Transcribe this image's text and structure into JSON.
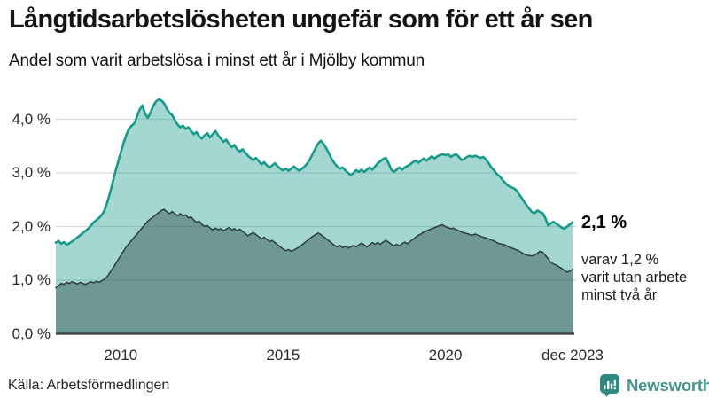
{
  "header": {
    "title": "Långtidsarbetslösheten ungefär som för ett år sen",
    "subtitle": "Andel som varit arbetslösa i minst ett år i Mjölby kommun"
  },
  "chart_data": {
    "type": "area",
    "title": "Långtidsarbetslösheten ungefär som för ett år sen",
    "subtitle": "Andel som varit arbetslösa i minst ett år i Mjölby kommun",
    "frequency": "monthly",
    "x_range": [
      "jan 2008",
      "dec 2023"
    ],
    "ylim": [
      0,
      4.6
    ],
    "grid": true,
    "y_tick_labels": [
      "0,0 %",
      "1,0 %",
      "2,0 %",
      "3,0 %",
      "4,0 %"
    ],
    "x_tick_labels": [
      "2010",
      "2015",
      "2020",
      "dec 2023"
    ],
    "x_tick_indices": [
      24,
      84,
      144,
      191
    ],
    "series": [
      {
        "name": "Andel arbetslösa minst ett år",
        "color": "#189a8a",
        "fill": "#189a8a",
        "fill_opacity": 0.4,
        "stroke_width": 2.6,
        "end_value": 2.1,
        "values": [
          1.7,
          1.73,
          1.68,
          1.71,
          1.66,
          1.69,
          1.72,
          1.76,
          1.8,
          1.84,
          1.88,
          1.92,
          1.96,
          2.02,
          2.08,
          2.12,
          2.16,
          2.22,
          2.3,
          2.45,
          2.62,
          2.82,
          3.02,
          3.2,
          3.38,
          3.55,
          3.7,
          3.82,
          3.88,
          3.92,
          4.05,
          4.18,
          4.26,
          4.1,
          4.03,
          4.12,
          4.25,
          4.33,
          4.37,
          4.35,
          4.3,
          4.2,
          4.12,
          4.08,
          3.98,
          3.9,
          3.85,
          3.88,
          3.82,
          3.85,
          3.78,
          3.72,
          3.76,
          3.68,
          3.64,
          3.7,
          3.74,
          3.66,
          3.72,
          3.78,
          3.7,
          3.64,
          3.58,
          3.62,
          3.54,
          3.48,
          3.52,
          3.44,
          3.4,
          3.44,
          3.38,
          3.32,
          3.28,
          3.24,
          3.28,
          3.22,
          3.16,
          3.2,
          3.14,
          3.1,
          3.14,
          3.18,
          3.12,
          3.08,
          3.05,
          3.08,
          3.04,
          3.08,
          3.12,
          3.08,
          3.04,
          3.08,
          3.12,
          3.18,
          3.26,
          3.36,
          3.46,
          3.55,
          3.6,
          3.54,
          3.46,
          3.36,
          3.26,
          3.18,
          3.12,
          3.08,
          3.1,
          3.05,
          3.0,
          2.96,
          3.0,
          3.05,
          3.02,
          3.06,
          3.02,
          3.06,
          3.1,
          3.06,
          3.12,
          3.18,
          3.22,
          3.26,
          3.28,
          3.18,
          3.06,
          3.02,
          3.06,
          3.1,
          3.06,
          3.1,
          3.13,
          3.16,
          3.2,
          3.23,
          3.19,
          3.23,
          3.27,
          3.23,
          3.27,
          3.31,
          3.27,
          3.31,
          3.33,
          3.35,
          3.33,
          3.35,
          3.3,
          3.33,
          3.35,
          3.3,
          3.24,
          3.26,
          3.3,
          3.32,
          3.3,
          3.32,
          3.3,
          3.28,
          3.3,
          3.25,
          3.18,
          3.1,
          3.05,
          2.98,
          2.94,
          2.88,
          2.82,
          2.77,
          2.74,
          2.72,
          2.69,
          2.62,
          2.55,
          2.47,
          2.4,
          2.33,
          2.27,
          2.25,
          2.3,
          2.27,
          2.25,
          2.15,
          2.02,
          2.06,
          2.09,
          2.05,
          2.02,
          1.98,
          1.96,
          2.0,
          2.04,
          2.08
        ]
      },
      {
        "name": "Andel arbetslösa minst två år",
        "color": "#2f4340",
        "fill": "#2f4f4c",
        "fill_opacity": 0.46,
        "stroke_width": 1.6,
        "end_value": 1.2,
        "values": [
          0.86,
          0.9,
          0.94,
          0.92,
          0.96,
          0.94,
          0.97,
          0.95,
          0.93,
          0.96,
          0.94,
          0.92,
          0.95,
          0.97,
          0.95,
          0.98,
          0.96,
          0.99,
          1.02,
          1.07,
          1.14,
          1.22,
          1.3,
          1.38,
          1.46,
          1.54,
          1.62,
          1.68,
          1.74,
          1.8,
          1.86,
          1.92,
          1.98,
          2.04,
          2.1,
          2.14,
          2.18,
          2.22,
          2.26,
          2.3,
          2.32,
          2.28,
          2.24,
          2.28,
          2.24,
          2.2,
          2.24,
          2.2,
          2.22,
          2.16,
          2.18,
          2.12,
          2.08,
          2.1,
          2.04,
          2.0,
          2.02,
          1.97,
          1.94,
          1.97,
          1.94,
          1.96,
          1.92,
          1.95,
          1.98,
          1.94,
          1.96,
          1.92,
          1.95,
          1.91,
          1.87,
          1.83,
          1.86,
          1.89,
          1.85,
          1.81,
          1.77,
          1.8,
          1.76,
          1.72,
          1.74,
          1.7,
          1.66,
          1.62,
          1.58,
          1.55,
          1.57,
          1.54,
          1.56,
          1.59,
          1.62,
          1.66,
          1.7,
          1.74,
          1.78,
          1.82,
          1.85,
          1.88,
          1.85,
          1.81,
          1.77,
          1.73,
          1.69,
          1.65,
          1.62,
          1.65,
          1.61,
          1.63,
          1.6,
          1.62,
          1.65,
          1.62,
          1.66,
          1.69,
          1.66,
          1.62,
          1.66,
          1.7,
          1.67,
          1.7,
          1.67,
          1.71,
          1.74,
          1.71,
          1.67,
          1.64,
          1.67,
          1.64,
          1.68,
          1.71,
          1.68,
          1.72,
          1.76,
          1.8,
          1.84,
          1.86,
          1.9,
          1.92,
          1.94,
          1.96,
          1.98,
          2.0,
          2.02,
          2.03,
          2.0,
          1.98,
          1.96,
          1.97,
          1.94,
          1.92,
          1.9,
          1.88,
          1.87,
          1.85,
          1.84,
          1.86,
          1.84,
          1.82,
          1.8,
          1.79,
          1.77,
          1.75,
          1.73,
          1.7,
          1.68,
          1.67,
          1.66,
          1.63,
          1.61,
          1.59,
          1.57,
          1.55,
          1.52,
          1.49,
          1.47,
          1.46,
          1.45,
          1.47,
          1.5,
          1.54,
          1.52,
          1.46,
          1.4,
          1.33,
          1.3,
          1.28,
          1.25,
          1.22,
          1.18,
          1.15,
          1.17,
          1.2
        ]
      }
    ],
    "annotations": {
      "end_value_label": "2,1 %",
      "sub_label_lines": [
        "varav 1,2 %",
        "varit utan arbete",
        "minst två år"
      ]
    },
    "colors": {
      "gridline": "#d9dbdf",
      "baseline": "#3d3d3d",
      "background": "#ffffff"
    }
  },
  "footer": {
    "source": "Källa: Arbetsförmedlingen",
    "brand": "Newsworthy",
    "brand_color": "#2e8a81"
  }
}
